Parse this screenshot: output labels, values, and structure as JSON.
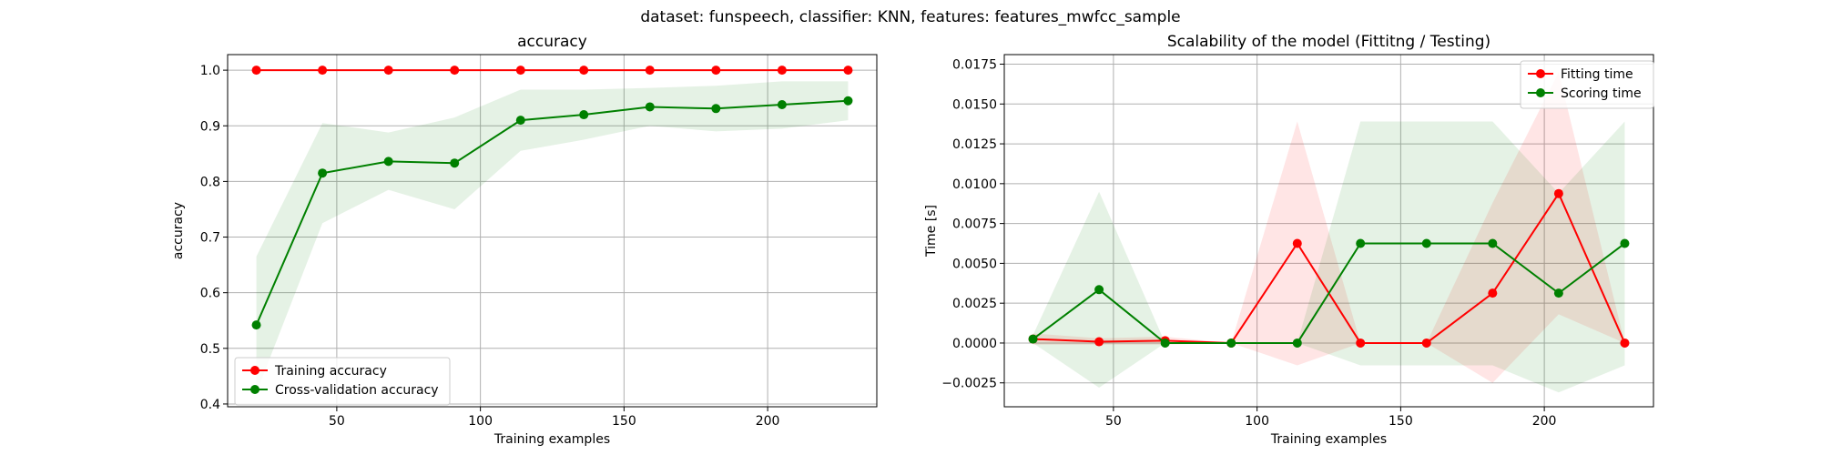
{
  "figure": {
    "suptitle": "dataset: funspeech, classifier: KNN, features: features_mwfcc_sample"
  },
  "colors": {
    "train": "#ff0000",
    "cv": "#008000",
    "train_band": "#ff0000",
    "cv_band": "#008000"
  },
  "chart_data": [
    {
      "type": "line",
      "title": "accuracy",
      "xlabel": "Training examples",
      "ylabel": "accuracy",
      "xlim": [
        12,
        238
      ],
      "ylim": [
        0.395,
        1.028
      ],
      "xticks": [
        50,
        100,
        150,
        200
      ],
      "yticks": [
        0.4,
        0.5,
        0.6,
        0.7,
        0.8,
        0.9,
        1.0
      ],
      "ytick_labels": [
        "0.4",
        "0.5",
        "0.6",
        "0.7",
        "0.8",
        "0.9",
        "1.0"
      ],
      "grid": true,
      "legend_position": "lower-left",
      "x": [
        22,
        45,
        68,
        91,
        114,
        136,
        159,
        182,
        205,
        228
      ],
      "series": [
        {
          "name": "Training accuracy",
          "color_key": "train",
          "values": [
            1.0,
            1.0,
            1.0,
            1.0,
            1.0,
            1.0,
            1.0,
            1.0,
            1.0,
            1.0
          ],
          "band_lower": [
            1.0,
            1.0,
            1.0,
            1.0,
            1.0,
            1.0,
            1.0,
            1.0,
            1.0,
            1.0
          ],
          "band_upper": [
            1.0,
            1.0,
            1.0,
            1.0,
            1.0,
            1.0,
            1.0,
            1.0,
            1.0,
            1.0
          ]
        },
        {
          "name": "Cross-validation accuracy",
          "color_key": "cv",
          "values": [
            0.542,
            0.815,
            0.836,
            0.833,
            0.91,
            0.92,
            0.934,
            0.931,
            0.938,
            0.945
          ],
          "band_lower": [
            0.42,
            0.725,
            0.785,
            0.75,
            0.855,
            0.875,
            0.9,
            0.89,
            0.895,
            0.91
          ],
          "band_upper": [
            0.665,
            0.905,
            0.888,
            0.915,
            0.965,
            0.965,
            0.968,
            0.972,
            0.98,
            0.98
          ]
        }
      ]
    },
    {
      "type": "line",
      "title": "Scalability of the model (Fittitng / Testing)",
      "xlabel": "Training examples",
      "ylabel": "Time [s]",
      "xlim": [
        12,
        238
      ],
      "ylim": [
        -0.004,
        0.0181
      ],
      "xticks": [
        50,
        100,
        150,
        200
      ],
      "yticks": [
        -0.0025,
        0.0,
        0.0025,
        0.005,
        0.0075,
        0.01,
        0.0125,
        0.015,
        0.0175
      ],
      "ytick_labels": [
        "−0.0025",
        "0.0000",
        "0.0025",
        "0.0050",
        "0.0075",
        "0.0100",
        "0.0125",
        "0.0150",
        "0.0175"
      ],
      "grid": true,
      "legend_position": "top-right",
      "x": [
        22,
        45,
        68,
        91,
        114,
        136,
        159,
        182,
        205,
        228
      ],
      "series": [
        {
          "name": "Fitting time",
          "color_key": "train",
          "values": [
            0.00025,
            8e-05,
            0.00015,
            0.0,
            0.00625,
            0.0,
            0.0,
            0.00313,
            0.00938,
            0.0
          ],
          "band_lower": [
            -0.0001,
            -0.0001,
            -0.0001,
            0.0,
            -0.0014,
            0.0,
            0.0,
            -0.0025,
            0.0018,
            0.0
          ],
          "band_upper": [
            0.0006,
            0.0003,
            0.0004,
            0.0,
            0.0139,
            0.0,
            0.0,
            0.0088,
            0.017,
            0.0
          ]
        },
        {
          "name": "Scoring time",
          "color_key": "cv",
          "values": [
            0.00025,
            0.00335,
            0.0,
            0.0,
            0.0,
            0.00625,
            0.00625,
            0.00625,
            0.00313,
            0.00625
          ],
          "band_lower": [
            0.0,
            -0.0028,
            0.0,
            0.0,
            0.0,
            -0.0014,
            -0.0014,
            -0.0014,
            -0.0031,
            -0.0014
          ],
          "band_upper": [
            0.0005,
            0.0095,
            0.0,
            0.0,
            0.0,
            0.0139,
            0.0139,
            0.0139,
            0.0094,
            0.0139
          ]
        }
      ]
    }
  ]
}
